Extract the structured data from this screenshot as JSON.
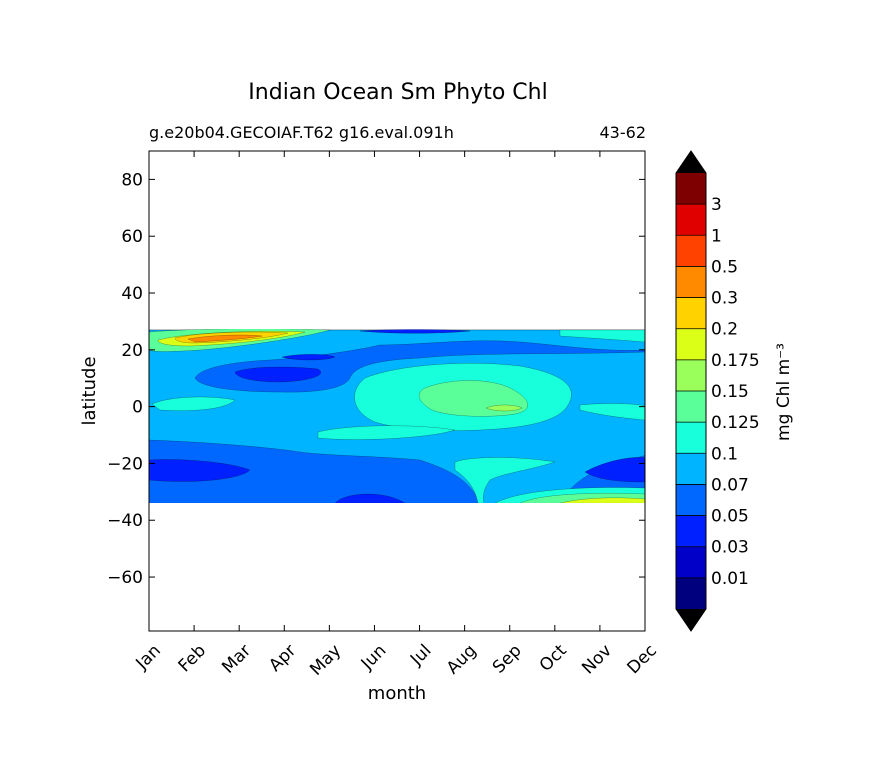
{
  "chart_data": {
    "type": "heatmap",
    "title": "Indian Ocean Sm Phyto Chl",
    "subtitle_left": "g.e20b04.GECOIAF.T62 g16.eval.091h",
    "subtitle_right": "43-62",
    "xlabel": "month",
    "ylabel": "latitude",
    "x_ticks": [
      "Jan",
      "Feb",
      "Mar",
      "Apr",
      "May",
      "Jun",
      "Jul",
      "Aug",
      "Sep",
      "Oct",
      "Nov",
      "Dec"
    ],
    "y_ticks": [
      80,
      60,
      40,
      20,
      0,
      -20,
      -40,
      -60
    ],
    "y_tick_labels": [
      "80",
      "60",
      "40",
      "20",
      "0",
      "−20",
      "−40",
      "−60"
    ],
    "ylim": [
      -79,
      90
    ],
    "data_lat_range": [
      -34,
      27
    ],
    "colorbar": {
      "label": "mg Chl m⁻³",
      "levels": [
        "0.01",
        "0.03",
        "0.05",
        "0.07",
        "0.1",
        "0.125",
        "0.15",
        "0.175",
        "0.2",
        "0.3",
        "0.5",
        "1",
        "3"
      ],
      "colors": [
        "#00007f",
        "#0000c8",
        "#0020ff",
        "#0068ff",
        "#00b4ff",
        "#18ffdc",
        "#5aff9a",
        "#9aff5a",
        "#dcff18",
        "#ffd200",
        "#ff8a00",
        "#ff4200",
        "#e00000",
        "#7f0000"
      ],
      "extend": "both"
    },
    "features": [
      {
        "desc": "high chl band Jan-May",
        "lat": 24,
        "value": "0.2-0.5"
      },
      {
        "desc": "low chl patch Mar-Apr",
        "lat": 12,
        "value": "0.05"
      },
      {
        "desc": "mid Arabian Sea region Aug-Sep",
        "lat": 4,
        "value": "0.125-0.15"
      },
      {
        "desc": "southern oligotrophic band",
        "lat": -25,
        "value": "0.05-0.07"
      },
      {
        "desc": "southern high chl Oct-Dec",
        "lat": -33,
        "value": "0.1-0.2"
      }
    ]
  }
}
